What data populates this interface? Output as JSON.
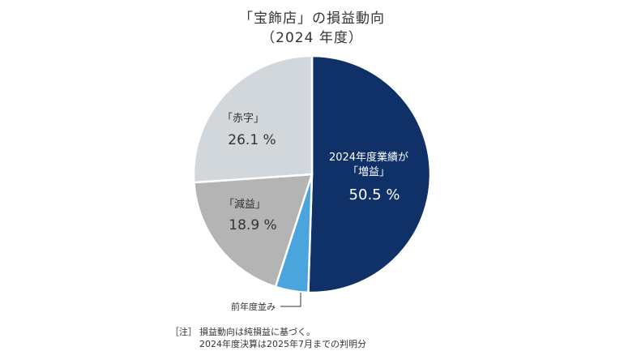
{
  "chart_data": {
    "type": "pie",
    "title": "「宝飾店」の損益動向",
    "subtitle": "（2024 年度）",
    "slices": [
      {
        "label_line1": "2024年度業績が",
        "label_line2": "「増益」",
        "value": 50.5,
        "value_text": "50.5 %",
        "color": "#0f3168"
      },
      {
        "label_line1": "",
        "label_line2": "前年度並み",
        "value": 4.5,
        "value_text": "",
        "color": "#4aa5dc"
      },
      {
        "label_line1": "",
        "label_line2": "「減益」",
        "value": 18.9,
        "value_text": "18.9 %",
        "color": "#b4b4b4"
      },
      {
        "label_line1": "",
        "label_line2": "「赤字」",
        "value": 26.1,
        "value_text": "26.1 %",
        "color": "#d2d7dc"
      }
    ]
  },
  "notes": {
    "head": "［注］",
    "line1": "損益動向は純損益に基づく。",
    "line2": "2024年度決算は2025年7月までの判明分"
  }
}
